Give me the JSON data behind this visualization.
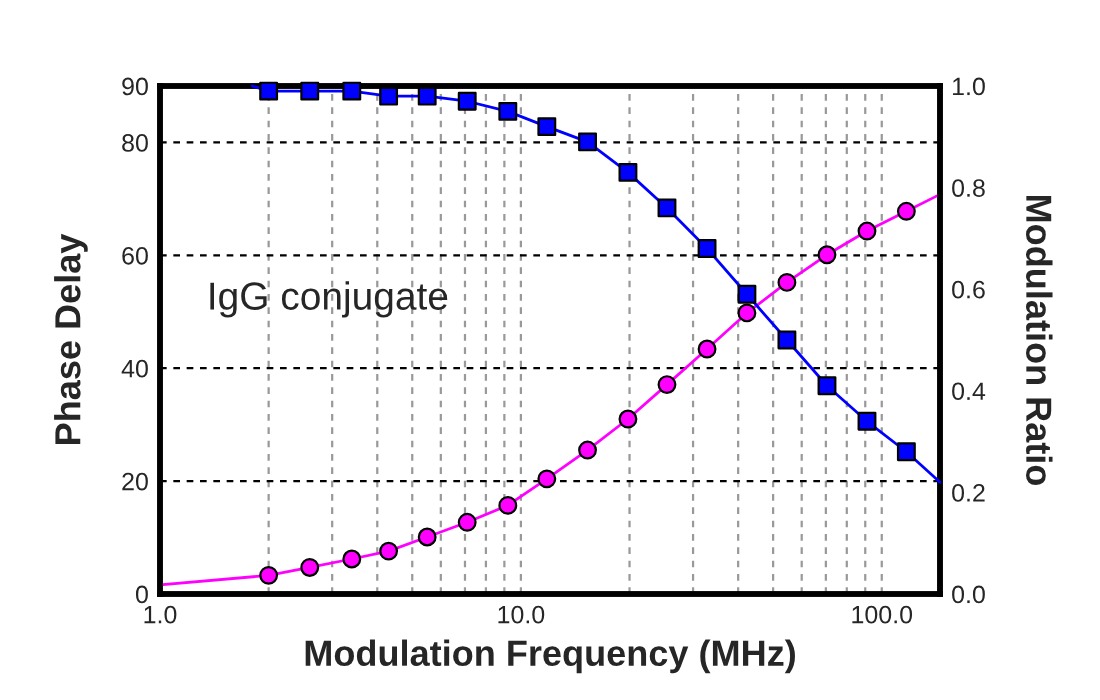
{
  "chart_data": {
    "type": "line",
    "xlabel": "Modulation Frequency (MHz)",
    "ylabel": "Phase Delay",
    "y2label": "Modulation Ratio",
    "annotations": [
      "IgG conjugate"
    ],
    "log": "x",
    "grid": true,
    "xlim": [
      1,
      145
    ],
    "xticks": [
      {
        "value": 1,
        "label": "1.0"
      },
      {
        "value": 2,
        "label": null
      },
      {
        "value": 3,
        "label": null
      },
      {
        "value": 4,
        "label": null
      },
      {
        "value": 5,
        "label": null
      },
      {
        "value": 6,
        "label": null
      },
      {
        "value": 7,
        "label": null
      },
      {
        "value": 8,
        "label": null
      },
      {
        "value": 9,
        "label": null
      },
      {
        "value": 10,
        "label": "10.0"
      },
      {
        "value": 20,
        "label": null
      },
      {
        "value": 30,
        "label": null
      },
      {
        "value": 40,
        "label": null
      },
      {
        "value": 50,
        "label": null
      },
      {
        "value": 60,
        "label": null
      },
      {
        "value": 70,
        "label": null
      },
      {
        "value": 80,
        "label": null
      },
      {
        "value": 90,
        "label": null
      },
      {
        "value": 100,
        "label": "100.0"
      }
    ],
    "ylim": [
      0,
      90
    ],
    "yticks": [
      0,
      20,
      40,
      60,
      80,
      90
    ],
    "y2lim": [
      0,
      1
    ],
    "y2ticks": [
      {
        "value": 0,
        "label": "0.0"
      },
      {
        "value": 0.2,
        "label": "0.2"
      },
      {
        "value": 0.4,
        "label": "0.4"
      },
      {
        "value": 0.6,
        "label": "0.6"
      },
      {
        "value": 0.8,
        "label": "0.8"
      },
      {
        "value": 1,
        "label": "1.0"
      }
    ],
    "series": [
      {
        "color": "#ff00ff",
        "x": [
          1,
          2,
          2.6,
          3.4,
          4.3,
          5.5,
          7.1,
          9.2,
          11.8,
          15.3,
          19.8,
          25.4,
          32.8,
          42.3,
          54.6,
          70.5,
          91,
          117,
          145
        ],
        "values": [
          1.6,
          3.3,
          4.7,
          6.2,
          7.6,
          10.1,
          12.7,
          15.7,
          20.4,
          25.5,
          31.0,
          37.1,
          43.4,
          49.8,
          55.2,
          60.1,
          64.3,
          67.8,
          70.8
        ]
      },
      {
        "color": "#0000ff",
        "axis": "y2",
        "x": [
          1.8,
          2,
          2.6,
          3.4,
          4.3,
          5.5,
          7.1,
          9.2,
          11.8,
          15.3,
          19.8,
          25.4,
          32.8,
          42.3,
          54.6,
          70.5,
          91,
          117,
          145
        ],
        "values": [
          1.0,
          0.99,
          0.99,
          0.99,
          0.98,
          0.98,
          0.97,
          0.95,
          0.92,
          0.89,
          0.83,
          0.76,
          0.68,
          0.59,
          0.5,
          0.41,
          0.34,
          0.28,
          0.22
        ]
      },
      {
        "type": "scatter",
        "color": "#ff00ff",
        "marker": "circle",
        "x": [
          2,
          2.6,
          3.4,
          4.3,
          5.5,
          7.1,
          9.2,
          11.8,
          15.3,
          19.8,
          25.4,
          32.8,
          42.3,
          54.6,
          70.5,
          91,
          117
        ],
        "values": [
          3.3,
          4.7,
          6.2,
          7.6,
          10.1,
          12.7,
          15.7,
          20.4,
          25.5,
          31.0,
          37.1,
          43.4,
          49.8,
          55.2,
          60.1,
          64.3,
          67.8
        ]
      },
      {
        "type": "scatter",
        "color": "#0000ff",
        "marker": "square",
        "axis": "y2",
        "x": [
          2,
          2.6,
          3.4,
          4.3,
          5.5,
          7.1,
          9.2,
          11.8,
          15.3,
          19.8,
          25.4,
          32.8,
          42.3,
          54.6,
          70.5,
          91,
          117
        ],
        "values": [
          0.99,
          0.99,
          0.99,
          0.98,
          0.98,
          0.97,
          0.95,
          0.92,
          0.89,
          0.83,
          0.76,
          0.68,
          0.59,
          0.5,
          0.41,
          0.34,
          0.28
        ]
      }
    ]
  }
}
